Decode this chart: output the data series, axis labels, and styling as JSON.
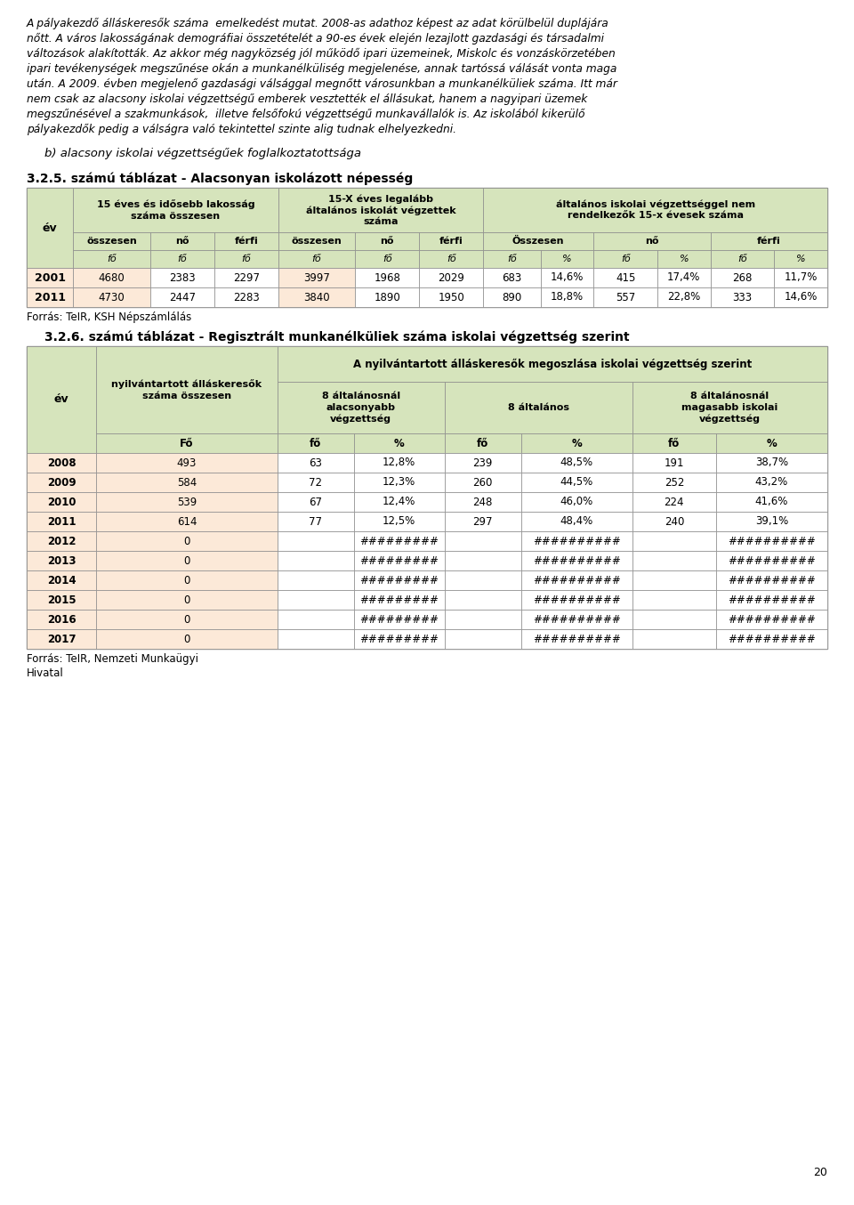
{
  "intro_lines": [
    "A pályakezdő álláskeresők száma  emelkedést mutat. 2008-as adathoz képest az adat körülbelül duplájára",
    "nőtt. A város lakosságának demográfiai összetételét a 90-es évek elején lezajlott gazdasági és társadalmi",
    "változások alakították. Az akkor még nagyközség jól működő ipari üzemeinek, Miskolc és vonzáskörzetében",
    "ipari tevékenységek megszűnése okán a munkanélküliség megjelenése, annak tartóssá válását vonta maga",
    "után. A 2009. évben megjelenő gazdasági válsággal megnőtt városunkban a munkanélküliek száma. Itt már",
    "nem csak az alacsony iskolai végzettségű emberek vesztették el állásukat, hanem a nagyipari üzemek",
    "megszűnésével a szakmunkások,  illetve felsőfokú végzettségű munkavállalók is. Az iskolából kikerülő",
    "pályakezdők pedig a válságra való tekintettel szinte alig tudnak elhelyezkedni."
  ],
  "subtitle": "b) alacsony iskolai végzettségűek foglalkoztatottsága",
  "table1_title": "3.2.5. számú táblázat - Alacsonyan iskolázott népesség",
  "table1_header1": "15 éves és idősebb lakosság\nszáma összesen",
  "table1_header2": "15-X éves legalább\náltalános iskolát végzettek\nszáma",
  "table1_header3": "általános iskolai végzettséggel nem\nrendelkezők 15-x évesek száma",
  "table1_data": [
    [
      "2001",
      "4680",
      "2383",
      "2297",
      "3997",
      "1968",
      "2029",
      "683",
      "14,6%",
      "415",
      "17,4%",
      "268",
      "11,7%"
    ],
    [
      "2011",
      "4730",
      "2447",
      "2283",
      "3840",
      "1890",
      "1950",
      "890",
      "18,8%",
      "557",
      "22,8%",
      "333",
      "14,6%"
    ]
  ],
  "table1_source": "Forrás: TeIR, KSH Népszámlálás",
  "table2_title": "3.2.6. számú táblázat - Regisztrált munkanélküliek száma iskolai végzettség szerint",
  "table2_header_col2": "nyilvántartott álláskeresők\nszáma összesen",
  "table2_header_mega": "A nyilvántartott álláskeresők megoszlása iskolai végzettség szerint",
  "table2_subheader1": "8 általánosnál\nalacsonyabb\nvégzettség",
  "table2_subheader2": "8 általános",
  "table2_subheader3": "8 általánosnál\nmagasabb iskolai\nvégzettség",
  "table2_data": [
    [
      "2008",
      "493",
      "63",
      "12,8%",
      "239",
      "48,5%",
      "191",
      "38,7%"
    ],
    [
      "2009",
      "584",
      "72",
      "12,3%",
      "260",
      "44,5%",
      "252",
      "43,2%"
    ],
    [
      "2010",
      "539",
      "67",
      "12,4%",
      "248",
      "46,0%",
      "224",
      "41,6%"
    ],
    [
      "2011",
      "614",
      "77",
      "12,5%",
      "297",
      "48,4%",
      "240",
      "39,1%"
    ],
    [
      "2012",
      "0",
      "",
      "#########",
      "",
      "##########",
      "",
      "##########"
    ],
    [
      "2013",
      "0",
      "",
      "#########",
      "",
      "##########",
      "",
      "##########"
    ],
    [
      "2014",
      "0",
      "",
      "#########",
      "",
      "##########",
      "",
      "##########"
    ],
    [
      "2015",
      "0",
      "",
      "#########",
      "",
      "##########",
      "",
      "##########"
    ],
    [
      "2016",
      "0",
      "",
      "#########",
      "",
      "##########",
      "",
      "##########"
    ],
    [
      "2017",
      "0",
      "",
      "#########",
      "",
      "##########",
      "",
      "##########"
    ]
  ],
  "table2_source": "Forrás: TeIR, Nemzeti Munkaügyi\nHivatal",
  "page_number": "20",
  "bg_color": "#ffffff",
  "header_bg": "#d6e4bc",
  "data_light": "#fce9d8",
  "border_color": "#8b8b8b"
}
